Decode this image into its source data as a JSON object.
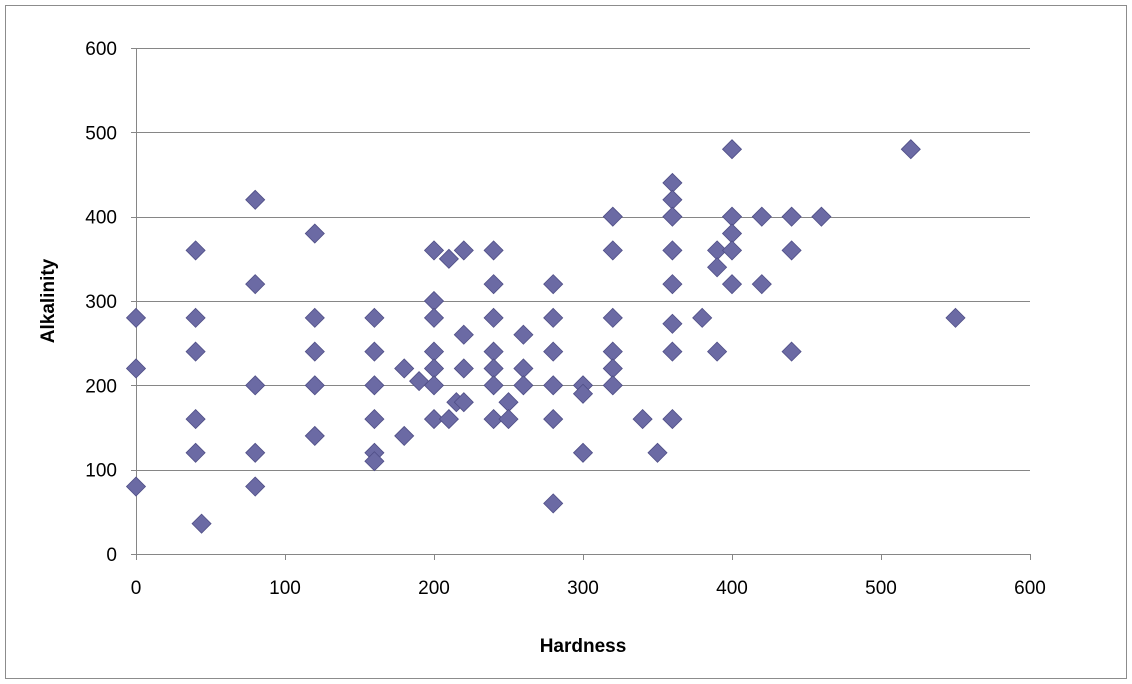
{
  "chart_data": {
    "type": "scatter",
    "title": "",
    "xlabel": "Hardness",
    "ylabel": "Alkalinity",
    "xlim": [
      0,
      600
    ],
    "ylim": [
      0,
      600
    ],
    "x_ticks": [
      "0",
      "100",
      "200",
      "300",
      "400",
      "500",
      "600"
    ],
    "y_ticks": [
      "0",
      "100",
      "200",
      "300",
      "400",
      "500",
      "600"
    ],
    "grid": "horizontal major gridlines",
    "legend": "none",
    "marker": "diamond",
    "colors": {
      "marker": "#6b6aa4",
      "marker_edge": "#4f4e86",
      "grid": "#868686"
    },
    "series": [
      {
        "points": [
          [
            0,
            280
          ],
          [
            0,
            220
          ],
          [
            0,
            80
          ],
          [
            40,
            360
          ],
          [
            40,
            280
          ],
          [
            40,
            240
          ],
          [
            40,
            160
          ],
          [
            40,
            120
          ],
          [
            44,
            36
          ],
          [
            80,
            420
          ],
          [
            80,
            320
          ],
          [
            80,
            200
          ],
          [
            80,
            120
          ],
          [
            80,
            80
          ],
          [
            120,
            380
          ],
          [
            120,
            280
          ],
          [
            120,
            240
          ],
          [
            120,
            200
          ],
          [
            120,
            140
          ],
          [
            160,
            280
          ],
          [
            160,
            240
          ],
          [
            160,
            200
          ],
          [
            160,
            160
          ],
          [
            160,
            120
          ],
          [
            160,
            110
          ],
          [
            180,
            220
          ],
          [
            180,
            140
          ],
          [
            190,
            205
          ],
          [
            200,
            360
          ],
          [
            200,
            300
          ],
          [
            200,
            280
          ],
          [
            200,
            240
          ],
          [
            200,
            220
          ],
          [
            200,
            200
          ],
          [
            200,
            160
          ],
          [
            210,
            350
          ],
          [
            210,
            160
          ],
          [
            215,
            180
          ],
          [
            220,
            360
          ],
          [
            220,
            260
          ],
          [
            220,
            220
          ],
          [
            220,
            180
          ],
          [
            240,
            360
          ],
          [
            240,
            320
          ],
          [
            240,
            280
          ],
          [
            240,
            240
          ],
          [
            240,
            220
          ],
          [
            240,
            200
          ],
          [
            240,
            160
          ],
          [
            250,
            180
          ],
          [
            250,
            160
          ],
          [
            260,
            260
          ],
          [
            260,
            220
          ],
          [
            260,
            200
          ],
          [
            280,
            320
          ],
          [
            280,
            280
          ],
          [
            280,
            240
          ],
          [
            280,
            200
          ],
          [
            280,
            160
          ],
          [
            280,
            60
          ],
          [
            300,
            200
          ],
          [
            300,
            190
          ],
          [
            300,
            120
          ],
          [
            320,
            400
          ],
          [
            320,
            360
          ],
          [
            320,
            280
          ],
          [
            320,
            240
          ],
          [
            320,
            220
          ],
          [
            320,
            200
          ],
          [
            340,
            160
          ],
          [
            350,
            120
          ],
          [
            360,
            440
          ],
          [
            360,
            420
          ],
          [
            360,
            400
          ],
          [
            360,
            360
          ],
          [
            360,
            320
          ],
          [
            360,
            273
          ],
          [
            360,
            240
          ],
          [
            360,
            160
          ],
          [
            380,
            280
          ],
          [
            390,
            360
          ],
          [
            390,
            340
          ],
          [
            390,
            240
          ],
          [
            400,
            480
          ],
          [
            400,
            400
          ],
          [
            400,
            380
          ],
          [
            400,
            360
          ],
          [
            400,
            320
          ],
          [
            420,
            400
          ],
          [
            420,
            320
          ],
          [
            440,
            400
          ],
          [
            440,
            360
          ],
          [
            440,
            240
          ],
          [
            460,
            400
          ],
          [
            520,
            480
          ],
          [
            550,
            280
          ]
        ]
      }
    ]
  }
}
